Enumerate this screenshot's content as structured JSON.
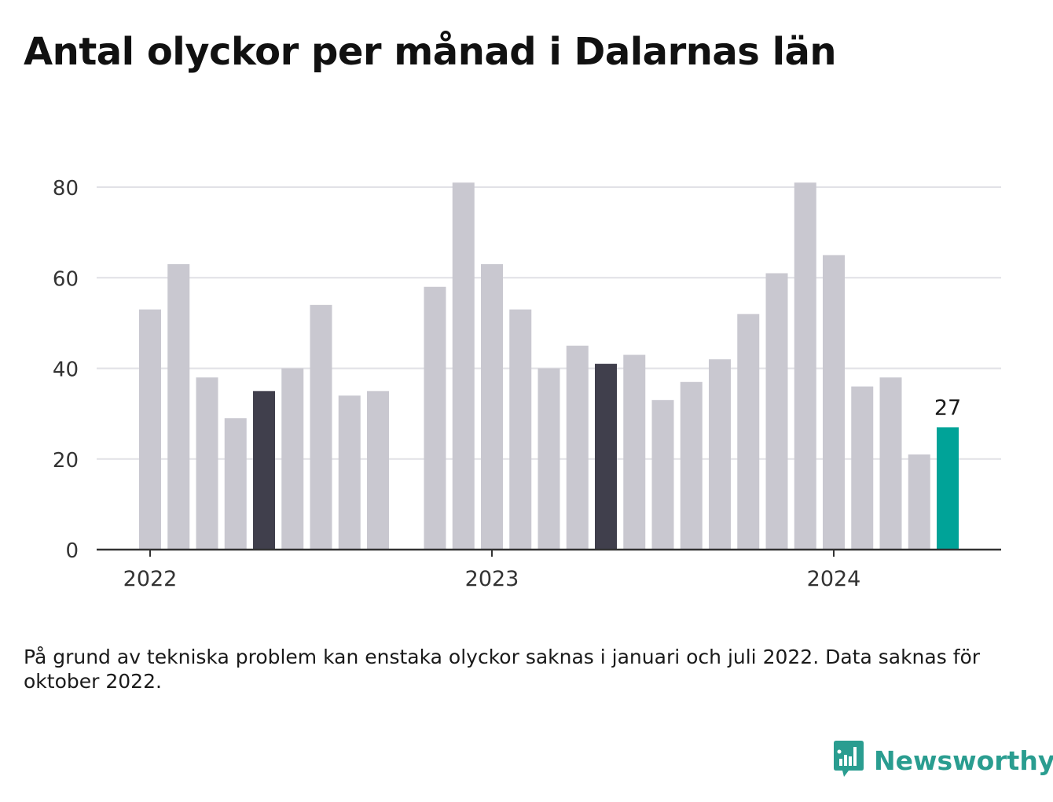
{
  "title": "Antal olyckor per månad i Dalarnas län",
  "footnote": "På grund av tekniska problem kan enstaka olyckor saknas i januari och juli 2022. Data saknas för oktober 2022.",
  "brand": {
    "name": "Newsworthy",
    "icon": "newsworthy-logo-icon",
    "color": "#2a9d90"
  },
  "chart_data": {
    "type": "bar",
    "ylim": [
      0,
      80
    ],
    "yticks": [
      0,
      20,
      40,
      60,
      80
    ],
    "grid": true,
    "xtick_labels": [
      {
        "label": "2022",
        "at": "2022-01"
      },
      {
        "label": "2023",
        "at": "2023-01"
      },
      {
        "label": "2024",
        "at": "2024-01"
      }
    ],
    "colors": {
      "default": "#c9c8d0",
      "highlight": "#403f4c",
      "latest": "#00a398",
      "grid": "#e1e1e6",
      "axis": "#333333"
    },
    "bars": [
      {
        "month": "2022-01",
        "value": 53
      },
      {
        "month": "2022-02",
        "value": 63
      },
      {
        "month": "2022-03",
        "value": 38
      },
      {
        "month": "2022-04",
        "value": 29
      },
      {
        "month": "2022-05",
        "value": 35,
        "highlight": true
      },
      {
        "month": "2022-06",
        "value": 40
      },
      {
        "month": "2022-07",
        "value": 54
      },
      {
        "month": "2022-08",
        "value": 34
      },
      {
        "month": "2022-09",
        "value": 35
      },
      {
        "month": "2022-10",
        "value": null
      },
      {
        "month": "2022-11",
        "value": 58
      },
      {
        "month": "2022-12",
        "value": 81
      },
      {
        "month": "2023-01",
        "value": 63
      },
      {
        "month": "2023-02",
        "value": 53
      },
      {
        "month": "2023-03",
        "value": 40
      },
      {
        "month": "2023-04",
        "value": 45
      },
      {
        "month": "2023-05",
        "value": 41,
        "highlight": true
      },
      {
        "month": "2023-06",
        "value": 43
      },
      {
        "month": "2023-07",
        "value": 33
      },
      {
        "month": "2023-08",
        "value": 37
      },
      {
        "month": "2023-09",
        "value": 42
      },
      {
        "month": "2023-10",
        "value": 52
      },
      {
        "month": "2023-11",
        "value": 61
      },
      {
        "month": "2023-12",
        "value": 81
      },
      {
        "month": "2024-01",
        "value": 65
      },
      {
        "month": "2024-02",
        "value": 36
      },
      {
        "month": "2024-03",
        "value": 38
      },
      {
        "month": "2024-04",
        "value": 21
      },
      {
        "month": "2024-05",
        "value": 27,
        "latest": true,
        "label": "27"
      }
    ]
  }
}
